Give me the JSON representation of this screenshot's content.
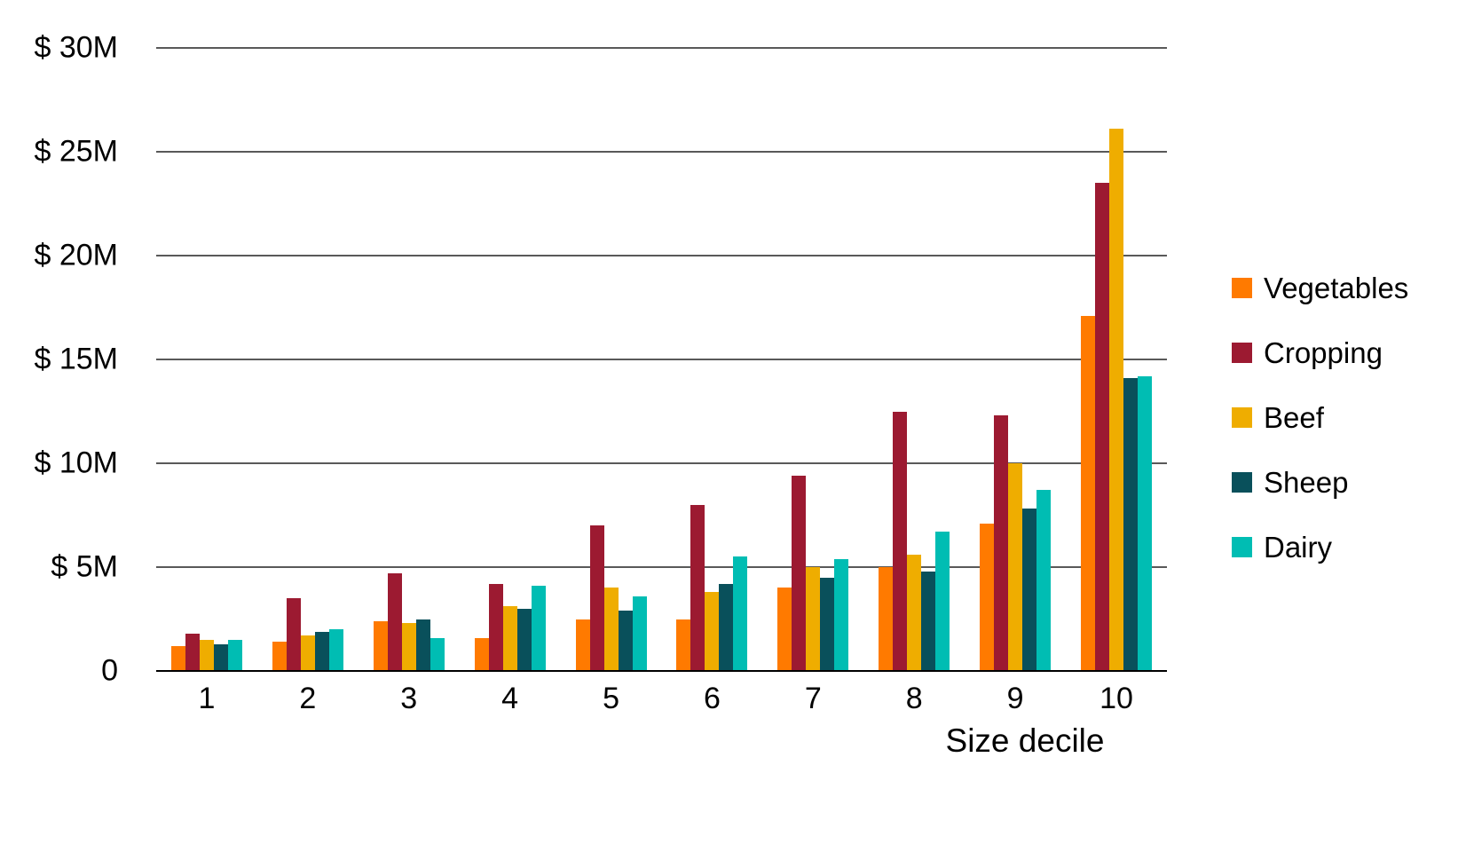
{
  "chart_data": {
    "type": "bar",
    "title": "",
    "xlabel": "Size decile",
    "ylabel": "",
    "unit": "millions of dollars",
    "categories": [
      "1",
      "2",
      "3",
      "4",
      "5",
      "6",
      "7",
      "8",
      "9",
      "10"
    ],
    "series": [
      {
        "name": "Vegetables",
        "color": "#FF7A00",
        "values": [
          1.2,
          1.4,
          2.4,
          1.6,
          2.5,
          2.5,
          4.0,
          5.0,
          7.1,
          17.1
        ]
      },
      {
        "name": "Cropping",
        "color": "#9C1A31",
        "values": [
          1.8,
          3.5,
          4.7,
          4.2,
          7.0,
          8.0,
          9.4,
          12.5,
          12.3,
          23.5
        ]
      },
      {
        "name": "Beef",
        "color": "#EFAD00",
        "values": [
          1.5,
          1.7,
          2.3,
          3.1,
          4.0,
          3.8,
          5.0,
          5.6,
          10.0,
          26.1
        ]
      },
      {
        "name": "Sheep",
        "color": "#09505B",
        "values": [
          1.3,
          1.9,
          2.5,
          3.0,
          2.9,
          4.2,
          4.5,
          4.8,
          7.8,
          14.1
        ]
      },
      {
        "name": "Dairy",
        "color": "#00BDB3",
        "values": [
          1.5,
          2.0,
          1.6,
          4.1,
          3.6,
          5.5,
          5.4,
          6.7,
          8.7,
          14.2
        ]
      }
    ],
    "y_axis": {
      "min": 0,
      "max": 30,
      "tick_interval": 5,
      "ticks": [
        {
          "value": 0,
          "label": "0"
        },
        {
          "value": 5,
          "label": "$ 5M"
        },
        {
          "value": 10,
          "label": "$ 10M"
        },
        {
          "value": 15,
          "label": "$ 15M"
        },
        {
          "value": 20,
          "label": "$ 20M"
        },
        {
          "value": 25,
          "label": "$ 25M"
        },
        {
          "value": 30,
          "label": "$ 30M"
        }
      ]
    },
    "grid": true,
    "legend_position": "right"
  },
  "colors": {
    "background": "#FFFFFF",
    "gridline": "#595959",
    "axis_line": "#000000",
    "text": "#000000"
  }
}
